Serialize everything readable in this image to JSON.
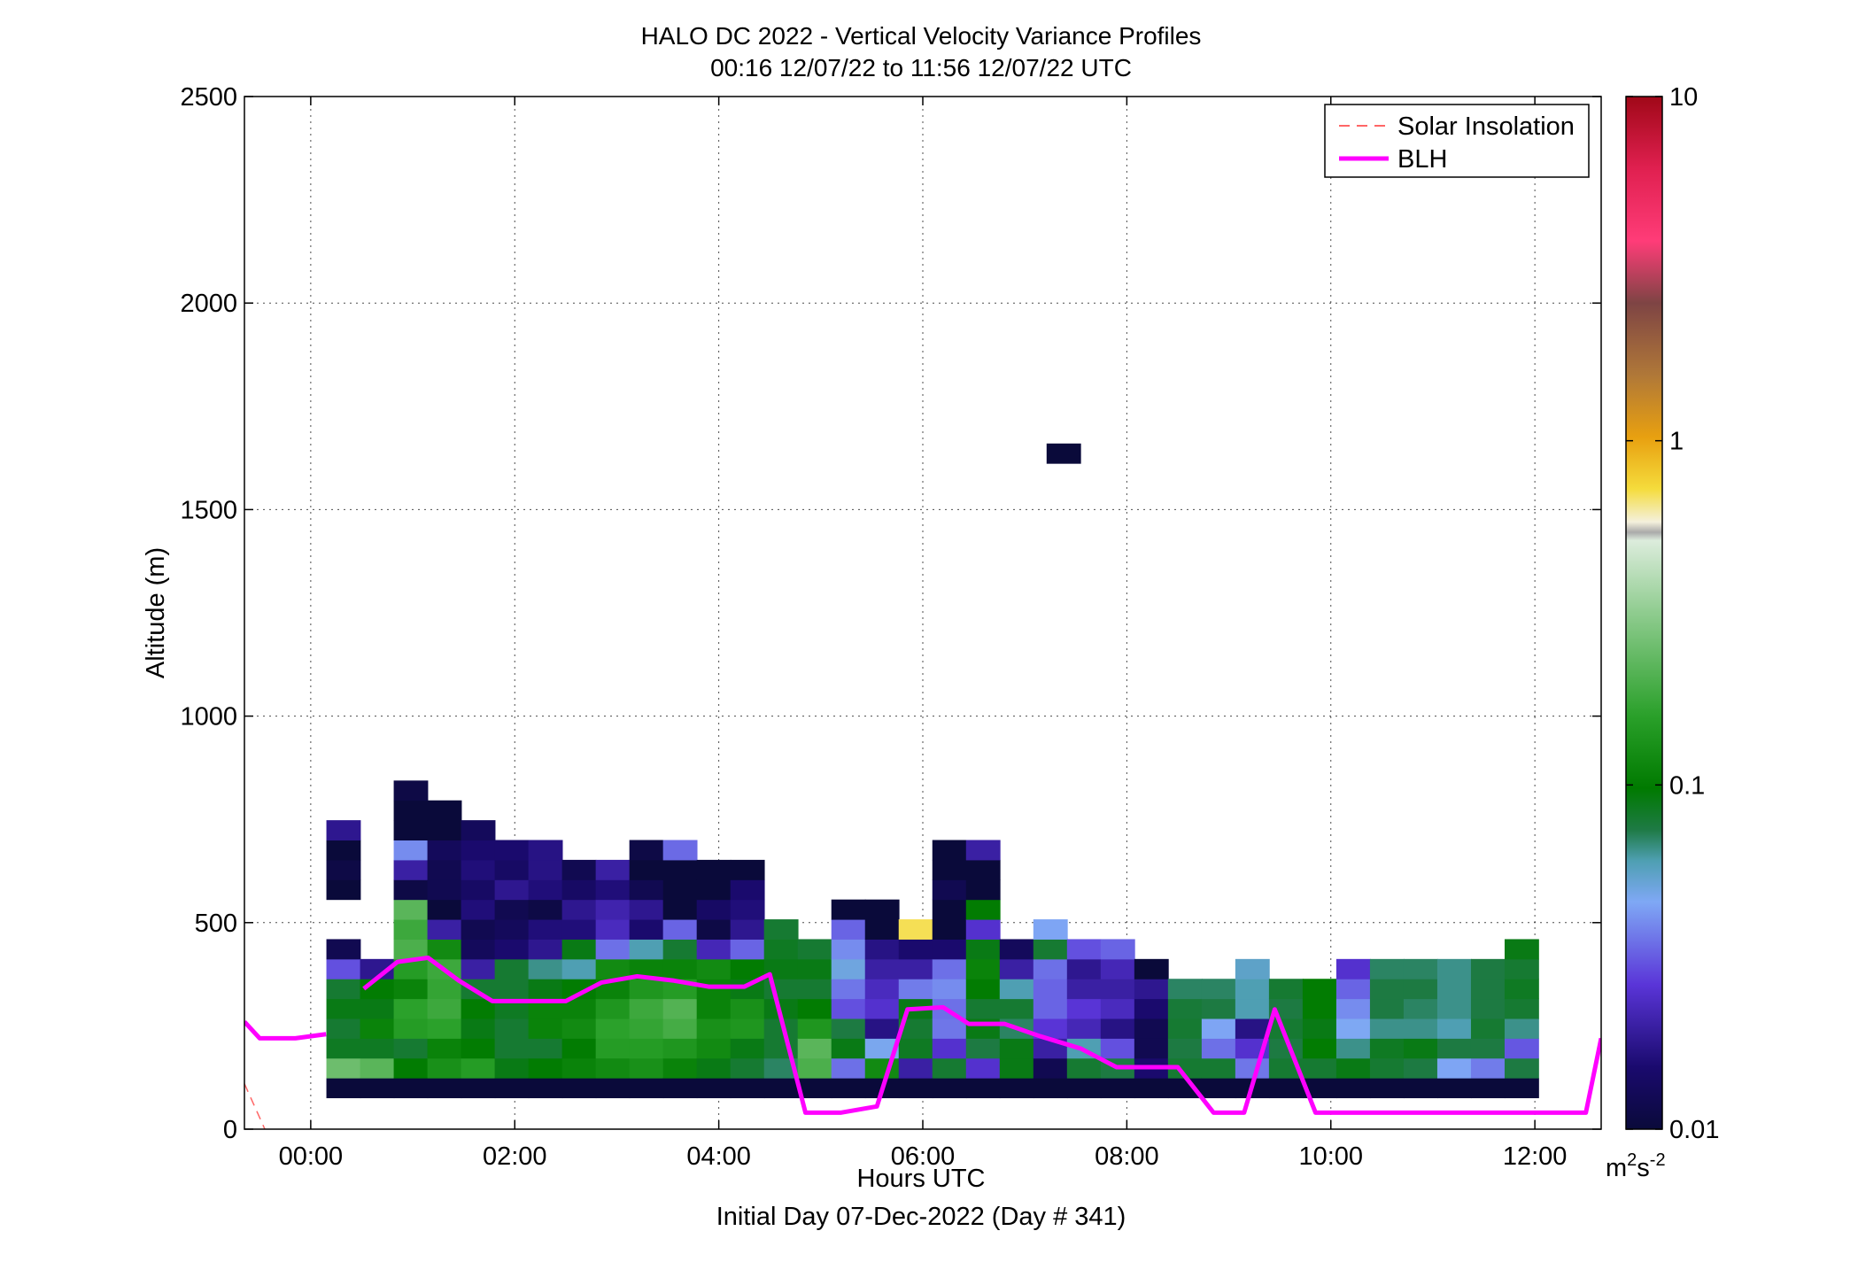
{
  "chart_data": {
    "type": "heatmap",
    "title": "HALO DC 2022 - Vertical Velocity Variance Profiles",
    "subtitle": "00:16 12/07/22 to 11:56 12/07/22  UTC",
    "xlabel": "Hours UTC",
    "xlabel2": "Initial Day 07-Dec-2022 (Day # 341)",
    "ylabel": "Altitude (m)",
    "xlim": [
      -0.65,
      12.65
    ],
    "ylim": [
      0,
      2500
    ],
    "xticks": [
      0,
      2,
      4,
      6,
      8,
      10,
      12
    ],
    "xtick_labels": [
      "00:00",
      "02:00",
      "04:00",
      "06:00",
      "08:00",
      "10:00",
      "12:00"
    ],
    "yticks": [
      0,
      500,
      1000,
      1500,
      2000,
      2500
    ],
    "ytick_labels": [
      "0",
      "500",
      "1000",
      "1500",
      "2000",
      "2500"
    ],
    "grid": true,
    "legend_position": "top-right",
    "legend": [
      {
        "label": "Solar Insolation",
        "color": "#ff6666",
        "style": "dashed"
      },
      {
        "label": "BLH",
        "color": "#ff00ff",
        "style": "solid"
      }
    ],
    "colorbar": {
      "scale": "log",
      "range": [
        0.01,
        10
      ],
      "tick_values": [
        0.01,
        0.1,
        1,
        10
      ],
      "tick_labels": [
        "0.01",
        "0.1",
        "1",
        "10"
      ],
      "unit_base": "m",
      "unit_sup1": "2",
      "unit_mid": "s",
      "unit_sup2": "-2"
    },
    "cell_time_step_hours": 0.333,
    "cell_altitude_step_m": 48,
    "cells": [
      {
        "t": 0.32,
        "alts": [
          100,
          148,
          196,
          244,
          292,
          340,
          388,
          436
        ],
        "v": [
          0.01,
          0.25,
          0.085,
          0.08,
          0.09,
          0.08,
          0.03,
          0.012
        ]
      },
      {
        "t": 0.32,
        "alts": [
          580,
          628,
          676,
          724
        ],
        "v": [
          0.01,
          0.011,
          0.01,
          0.018
        ]
      },
      {
        "t": 0.65,
        "alts": [
          100,
          148,
          196,
          244,
          292,
          340,
          388
        ],
        "v": [
          0.01,
          0.22,
          0.085,
          0.11,
          0.09,
          0.1,
          0.018
        ]
      },
      {
        "t": 0.98,
        "alts": [
          100,
          148,
          196,
          244,
          292,
          340,
          388,
          436,
          484,
          532,
          580,
          628,
          676,
          724,
          772,
          820
        ],
        "v": [
          0.01,
          0.1,
          0.08,
          0.15,
          0.16,
          0.11,
          0.15,
          0.2,
          0.18,
          0.22,
          0.011,
          0.02,
          0.04,
          0.01,
          0.01,
          0.011
        ]
      },
      {
        "t": 1.31,
        "alts": [
          100,
          148,
          196,
          244,
          292,
          340,
          388,
          436,
          484,
          532,
          580,
          628,
          676,
          724,
          772
        ],
        "v": [
          0.01,
          0.13,
          0.11,
          0.16,
          0.18,
          0.17,
          0.18,
          0.12,
          0.02,
          0.01,
          0.012,
          0.012,
          0.013,
          0.01,
          0.01
        ]
      },
      {
        "t": 1.64,
        "alts": [
          100,
          148,
          196,
          244,
          292,
          340,
          388,
          436,
          484,
          532,
          580,
          628,
          676,
          724
        ],
        "v": [
          0.01,
          0.15,
          0.1,
          0.09,
          0.1,
          0.08,
          0.02,
          0.013,
          0.012,
          0.016,
          0.014,
          0.016,
          0.015,
          0.013
        ]
      },
      {
        "t": 1.97,
        "alts": [
          100,
          148,
          196,
          244,
          292,
          340,
          388,
          436,
          484,
          532,
          580,
          628,
          676
        ],
        "v": [
          0.01,
          0.09,
          0.08,
          0.08,
          0.085,
          0.08,
          0.08,
          0.015,
          0.013,
          0.012,
          0.018,
          0.014,
          0.015
        ]
      },
      {
        "t": 2.3,
        "alts": [
          100,
          148,
          196,
          244,
          292,
          340,
          388,
          436,
          484,
          532,
          580,
          628,
          676
        ],
        "v": [
          0.01,
          0.1,
          0.08,
          0.11,
          0.11,
          0.09,
          0.065,
          0.018,
          0.016,
          0.011,
          0.016,
          0.017,
          0.017
        ]
      },
      {
        "t": 2.63,
        "alts": [
          100,
          148,
          196,
          244,
          292,
          340,
          388,
          436,
          484,
          532,
          580,
          628
        ],
        "v": [
          0.01,
          0.11,
          0.1,
          0.12,
          0.11,
          0.1,
          0.06,
          0.09,
          0.016,
          0.018,
          0.014,
          0.012
        ]
      },
      {
        "t": 2.96,
        "alts": [
          100,
          148,
          196,
          244,
          292,
          340,
          388,
          436,
          484,
          532,
          580,
          628
        ],
        "v": [
          0.01,
          0.12,
          0.15,
          0.16,
          0.14,
          0.11,
          0.12,
          0.035,
          0.023,
          0.021,
          0.016,
          0.02
        ]
      },
      {
        "t": 3.29,
        "alts": [
          100,
          148,
          196,
          244,
          292,
          340,
          388,
          436,
          484,
          532,
          580,
          628,
          676
        ],
        "v": [
          0.01,
          0.13,
          0.15,
          0.17,
          0.18,
          0.14,
          0.11,
          0.06,
          0.015,
          0.018,
          0.012,
          0.01,
          0.011
        ]
      },
      {
        "t": 3.62,
        "alts": [
          100,
          148,
          196,
          244,
          292,
          340,
          388,
          436,
          484,
          532,
          580,
          628,
          676
        ],
        "v": [
          0.01,
          0.11,
          0.14,
          0.19,
          0.21,
          0.15,
          0.11,
          0.08,
          0.033,
          0.01,
          0.01,
          0.01,
          0.034
        ]
      },
      {
        "t": 3.95,
        "alts": [
          100,
          148,
          196,
          244,
          292,
          340,
          388,
          436,
          484,
          532,
          580,
          628
        ],
        "v": [
          0.01,
          0.09,
          0.12,
          0.13,
          0.11,
          0.11,
          0.12,
          0.022,
          0.011,
          0.014,
          0.01,
          0.01
        ]
      },
      {
        "t": 4.28,
        "alts": [
          100,
          148,
          196,
          244,
          292,
          340,
          388,
          436,
          484,
          532,
          580,
          628
        ],
        "v": [
          0.01,
          0.08,
          0.09,
          0.14,
          0.13,
          0.09,
          0.1,
          0.033,
          0.018,
          0.016,
          0.015,
          0.01
        ]
      },
      {
        "t": 4.61,
        "alts": [
          100,
          148,
          196,
          244,
          292,
          340,
          388,
          436,
          484
        ],
        "v": [
          0.01,
          0.07,
          0.08,
          0.08,
          0.09,
          0.08,
          0.09,
          0.085,
          0.08
        ]
      },
      {
        "t": 4.94,
        "alts": [
          100,
          148,
          196,
          244,
          292,
          340,
          388,
          436
        ],
        "v": [
          0.01,
          0.2,
          0.22,
          0.14,
          0.1,
          0.08,
          0.09,
          0.08
        ]
      },
      {
        "t": 5.27,
        "alts": [
          100,
          148,
          196,
          244,
          292,
          340,
          388,
          436,
          484,
          532
        ],
        "v": [
          0.01,
          0.035,
          0.09,
          0.075,
          0.03,
          0.036,
          0.05,
          0.04,
          0.033,
          0.01
        ]
      },
      {
        "t": 5.6,
        "alts": [
          100,
          148,
          196,
          244,
          292,
          340,
          388,
          436,
          484,
          532
        ],
        "v": [
          0.01,
          0.12,
          0.047,
          0.017,
          0.025,
          0.023,
          0.02,
          0.017,
          0.01,
          0.01
        ]
      },
      {
        "t": 5.93,
        "alts": [
          100,
          148,
          196,
          244,
          292,
          340,
          388,
          436,
          484
        ],
        "v": [
          0.01,
          0.02,
          0.085,
          0.08,
          0.09,
          0.037,
          0.02,
          0.015,
          0.7
        ]
      },
      {
        "t": 6.26,
        "alts": [
          100,
          148,
          196,
          244,
          292,
          340,
          388,
          436,
          484,
          532,
          580,
          628,
          676
        ],
        "v": [
          0.01,
          0.08,
          0.025,
          0.036,
          0.035,
          0.04,
          0.035,
          0.015,
          0.01,
          0.01,
          0.012,
          0.01,
          0.01
        ]
      },
      {
        "t": 6.59,
        "alts": [
          100,
          148,
          196,
          244,
          292,
          340,
          388,
          436,
          484,
          532,
          580,
          628,
          676
        ],
        "v": [
          0.01,
          0.025,
          0.075,
          0.09,
          0.08,
          0.1,
          0.11,
          0.09,
          0.025,
          0.1,
          0.01,
          0.01,
          0.02
        ]
      },
      {
        "t": 6.92,
        "alts": [
          100,
          148,
          196,
          244,
          292,
          340,
          388,
          436
        ],
        "v": [
          0.01,
          0.09,
          0.09,
          0.07,
          0.08,
          0.06,
          0.02,
          0.013
        ]
      },
      {
        "t": 7.25,
        "alts": [
          100,
          148,
          196,
          244,
          292,
          340,
          388,
          436,
          484
        ],
        "v": [
          0.01,
          0.012,
          0.02,
          0.026,
          0.033,
          0.033,
          0.035,
          0.08,
          0.045
        ]
      },
      {
        "t": 7.58,
        "alts": [
          100,
          148,
          196,
          244,
          292,
          340,
          388,
          436
        ],
        "v": [
          0.01,
          0.08,
          0.06,
          0.022,
          0.026,
          0.02,
          0.018,
          0.03
        ]
      },
      {
        "t": 7.91,
        "alts": [
          100,
          148,
          196,
          244,
          292,
          340,
          388,
          436
        ],
        "v": [
          0.01,
          0.075,
          0.03,
          0.017,
          0.023,
          0.02,
          0.022,
          0.033
        ]
      },
      {
        "t": 8.24,
        "alts": [
          100,
          148,
          196,
          244,
          292,
          340,
          388
        ],
        "v": [
          0.01,
          0.015,
          0.012,
          0.012,
          0.015,
          0.018,
          0.01
        ]
      },
      {
        "t": 8.57,
        "alts": [
          100,
          148,
          196,
          244,
          292,
          340
        ],
        "v": [
          0.01,
          0.08,
          0.075,
          0.08,
          0.078,
          0.07
        ]
      },
      {
        "t": 8.9,
        "alts": [
          100,
          148,
          196,
          244,
          292,
          340
        ],
        "v": [
          0.01,
          0.08,
          0.035,
          0.045,
          0.075,
          0.07
        ]
      },
      {
        "t": 9.23,
        "alts": [
          100,
          148,
          196,
          244,
          292,
          340,
          388
        ],
        "v": [
          0.01,
          0.036,
          0.025,
          0.017,
          0.06,
          0.06,
          0.055
        ]
      },
      {
        "t": 9.56,
        "alts": [
          100,
          148,
          196,
          244,
          292,
          340
        ],
        "v": [
          0.01,
          0.08,
          0.075,
          0.08,
          0.075,
          0.08
        ]
      },
      {
        "t": 9.89,
        "alts": [
          100,
          148,
          196,
          244,
          292,
          340
        ],
        "v": [
          0.01,
          0.08,
          0.1,
          0.09,
          0.1,
          0.1
        ]
      },
      {
        "t": 10.22,
        "alts": [
          100,
          148,
          196,
          244,
          292,
          340,
          388
        ],
        "v": [
          0.01,
          0.09,
          0.065,
          0.046,
          0.04,
          0.033,
          0.025
        ]
      },
      {
        "t": 10.55,
        "alts": [
          100,
          148,
          196,
          244,
          292,
          340,
          388
        ],
        "v": [
          0.01,
          0.08,
          0.085,
          0.065,
          0.075,
          0.075,
          0.07
        ]
      },
      {
        "t": 10.88,
        "alts": [
          100,
          148,
          196,
          244,
          292,
          340,
          388
        ],
        "v": [
          0.01,
          0.075,
          0.09,
          0.065,
          0.07,
          0.075,
          0.07
        ]
      },
      {
        "t": 11.21,
        "alts": [
          100,
          148,
          196,
          244,
          292,
          340,
          388
        ],
        "v": [
          0.01,
          0.045,
          0.075,
          0.06,
          0.065,
          0.065,
          0.065
        ]
      },
      {
        "t": 11.54,
        "alts": [
          100,
          148,
          196,
          244,
          292,
          340,
          388
        ],
        "v": [
          0.01,
          0.037,
          0.075,
          0.08,
          0.075,
          0.075,
          0.075
        ]
      },
      {
        "t": 11.87,
        "alts": [
          100,
          148,
          196,
          244,
          292,
          340,
          388,
          436
        ],
        "v": [
          0.01,
          0.075,
          0.031,
          0.065,
          0.08,
          0.085,
          0.08,
          0.09
        ]
      },
      {
        "t": 7.38,
        "alts": [
          1636
        ],
        "v": [
          0.01
        ]
      }
    ],
    "series": [
      {
        "name": "BLH",
        "x": [
          -0.65,
          -0.5,
          -0.15,
          0.15,
          0.52,
          0.85,
          1.15,
          1.45,
          1.78,
          2.1,
          2.5,
          2.85,
          3.2,
          3.55,
          3.9,
          4.25,
          4.5,
          4.85,
          5.2,
          5.55,
          5.85,
          6.2,
          6.45,
          6.8,
          7.15,
          7.55,
          7.9,
          8.15,
          8.5,
          8.85,
          9.15,
          9.45,
          9.85,
          10.15,
          12.05,
          12.5,
          12.65
        ],
        "y": [
          260,
          220,
          220,
          230,
          340,
          405,
          415,
          360,
          310,
          310,
          310,
          355,
          370,
          360,
          345,
          345,
          375,
          40,
          40,
          55,
          290,
          295,
          255,
          255,
          225,
          195,
          150,
          150,
          150,
          40,
          40,
          290,
          40,
          40,
          40,
          40,
          220
        ]
      },
      {
        "name": "Solar Insolation",
        "x": [
          -0.65,
          -0.45
        ],
        "y": [
          110,
          0
        ]
      }
    ]
  }
}
